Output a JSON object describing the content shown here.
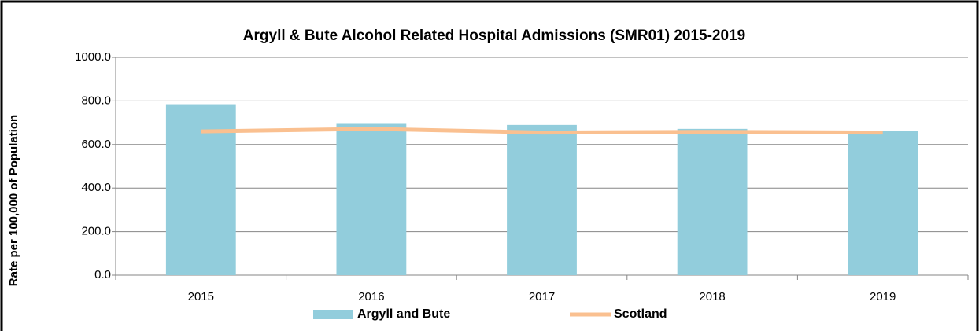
{
  "chart_data": {
    "type": "bar",
    "title": "Argyll & Bute Alcohol Related Hospital Admissions (SMR01) 2015-2019",
    "y_label": "Rate per 100,000 of Population",
    "categories": [
      "2015",
      "2016",
      "2017",
      "2018",
      "2019"
    ],
    "series": [
      {
        "name": "Argyll and Bute",
        "type": "bar",
        "color": "#92cddc",
        "values": [
          785,
          695,
          690,
          672,
          663
        ]
      },
      {
        "name": "Scotland",
        "type": "line",
        "color": "#fac090",
        "values": [
          660,
          672,
          655,
          658,
          655
        ]
      }
    ],
    "ylim": [
      0,
      1000
    ],
    "yticks": [
      {
        "value": 0,
        "label": "0.0"
      },
      {
        "value": 200,
        "label": "200.0"
      },
      {
        "value": 400,
        "label": "400.0"
      },
      {
        "value": 600,
        "label": "600.0"
      },
      {
        "value": 800,
        "label": "800.0"
      },
      {
        "value": 1000,
        "label": "1000.0"
      }
    ],
    "grid": true,
    "legend": "bottom"
  }
}
